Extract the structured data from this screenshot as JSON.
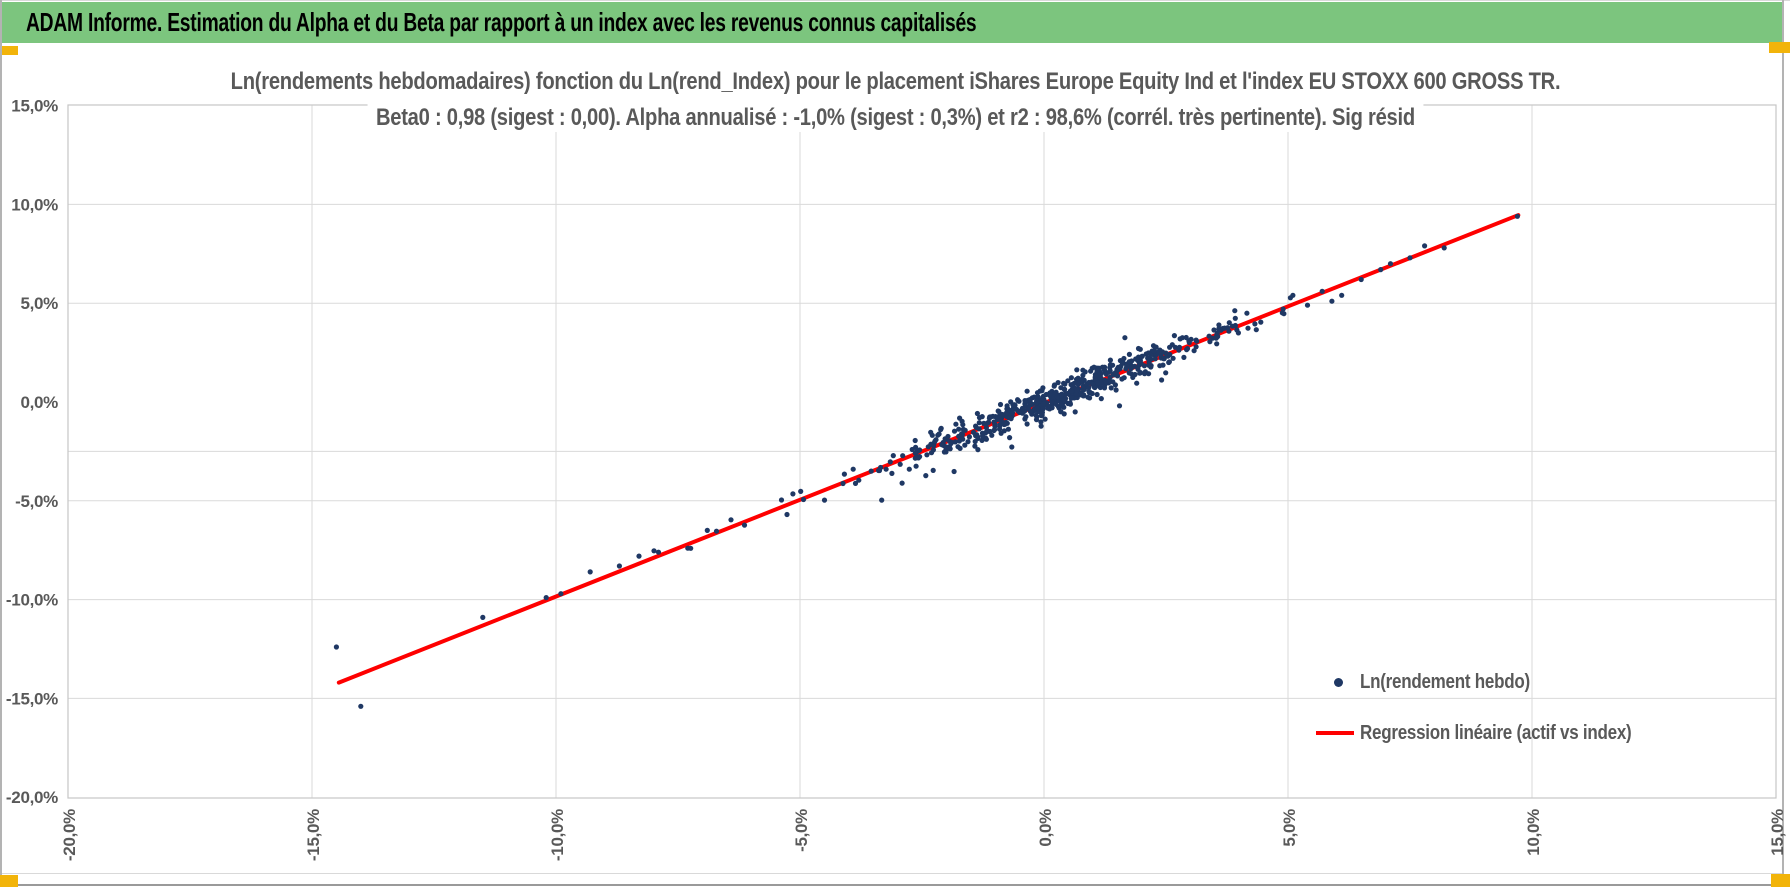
{
  "header": {
    "title": "ADAM Informe. Estimation du Alpha et du Beta par rapport à un index avec les revenus connus capitalisés"
  },
  "colors": {
    "header_green": "#7cc57e",
    "corner_yellow": "#f2b40a",
    "chart_text": "#595959",
    "gridline": "#dadada",
    "plot_border": "#c6c6c6",
    "point_navy": "#1f3864",
    "regression_red": "#fe0000",
    "window_border": "#b3b3b3"
  },
  "chart_data": {
    "type": "scatter",
    "title_line1": "Ln(rendements hebdomadaires) fonction du Ln(rend_Index) pour le placement iShares Europe Equity Ind et l'index EU STOXX 600 GROSS TR.",
    "title_line2": "Beta0 : 0,98 (sigest : 0,00). Alpha annualisé : -1,0% (sigest : 0,3%) et r2 : 98,6% (corrél. très pertinente). Sig résid",
    "stats": {
      "beta0": "0,98",
      "beta0_sigest": "0,00",
      "alpha_annualise": "-1,0%",
      "alpha_sigest": "0,3%",
      "r2": "98,6%",
      "r2_comment": "corrél. très pertinente",
      "residual_label": "Sig résid"
    },
    "x_axis": {
      "min": -20,
      "max": 15,
      "unit": "%",
      "tick_values": [
        -20,
        -15,
        -10,
        -5,
        0,
        5,
        10,
        15
      ],
      "tick_labels": [
        "-20,0%",
        "-15,0%",
        "-10,0%",
        "-5,0%",
        "0,0%",
        "5,0%",
        "10,0%",
        "15,0%"
      ],
      "gridline_values": [
        -15,
        -10,
        -5,
        0,
        5,
        10
      ]
    },
    "y_axis": {
      "min": -20,
      "max": 15,
      "unit": "%",
      "tick_values": [
        15,
        10,
        5,
        0,
        -5,
        -10,
        -15,
        -20
      ],
      "tick_labels": [
        "15,0%",
        "10,0%",
        "5,0%",
        "0,0%",
        "-5,0%",
        "-10,0%",
        "-15,0%",
        "-20,0%"
      ],
      "gridline_values": [
        10,
        5,
        -2.5,
        -5,
        -10,
        -15
      ]
    },
    "legend": {
      "entries": [
        {
          "label": "Ln(rendement hebdo)",
          "marker": "dot",
          "color": "#1f3864"
        },
        {
          "label": "Regression linéaire (actif vs index)",
          "marker": "line",
          "color": "#fe0000"
        }
      ]
    },
    "regression": {
      "beta": 0.975,
      "alpha_weekly_pct": -0.02,
      "line_points": [
        [
          -14.45,
          -14.2
        ],
        [
          9.72,
          9.46
        ]
      ]
    },
    "scatter": {
      "name": "Ln(rendement hebdo)",
      "color": "#1f3864",
      "point_radius": 2.6,
      "generator": {
        "seed": 20,
        "n": 585,
        "main_weight": 0.85,
        "main_mean": 0.35,
        "main_std": 1.55,
        "wide_mean": 0,
        "wide_std": 3.1,
        "x_min": -8.3,
        "x_max": 5.2,
        "resid_std": 0.36,
        "resid_wide_weight": 0.1,
        "resid_wide_std": 0.8,
        "resid_clamp": 1.7
      },
      "tail_points": [
        [
          -14.5,
          -12.4
        ],
        [
          -14.0,
          -15.4
        ],
        [
          -11.5,
          -10.9
        ],
        [
          -10.2,
          -9.9
        ],
        [
          -9.9,
          -9.7
        ],
        [
          -9.3,
          -8.6
        ],
        [
          -8.7,
          -8.3
        ],
        [
          -8.3,
          -7.8
        ],
        [
          -7.9,
          -7.6
        ],
        [
          -7.3,
          -7.4
        ],
        [
          -6.9,
          -6.5
        ],
        [
          4.9,
          4.7
        ],
        [
          5.1,
          5.4
        ],
        [
          5.4,
          4.9
        ],
        [
          5.7,
          5.6
        ],
        [
          5.9,
          5.1
        ],
        [
          6.1,
          5.4
        ],
        [
          6.5,
          6.2
        ],
        [
          6.9,
          6.7
        ],
        [
          7.1,
          7.0
        ],
        [
          7.5,
          7.3
        ],
        [
          7.8,
          7.9
        ],
        [
          8.2,
          7.8
        ],
        [
          9.7,
          9.4
        ]
      ]
    }
  }
}
